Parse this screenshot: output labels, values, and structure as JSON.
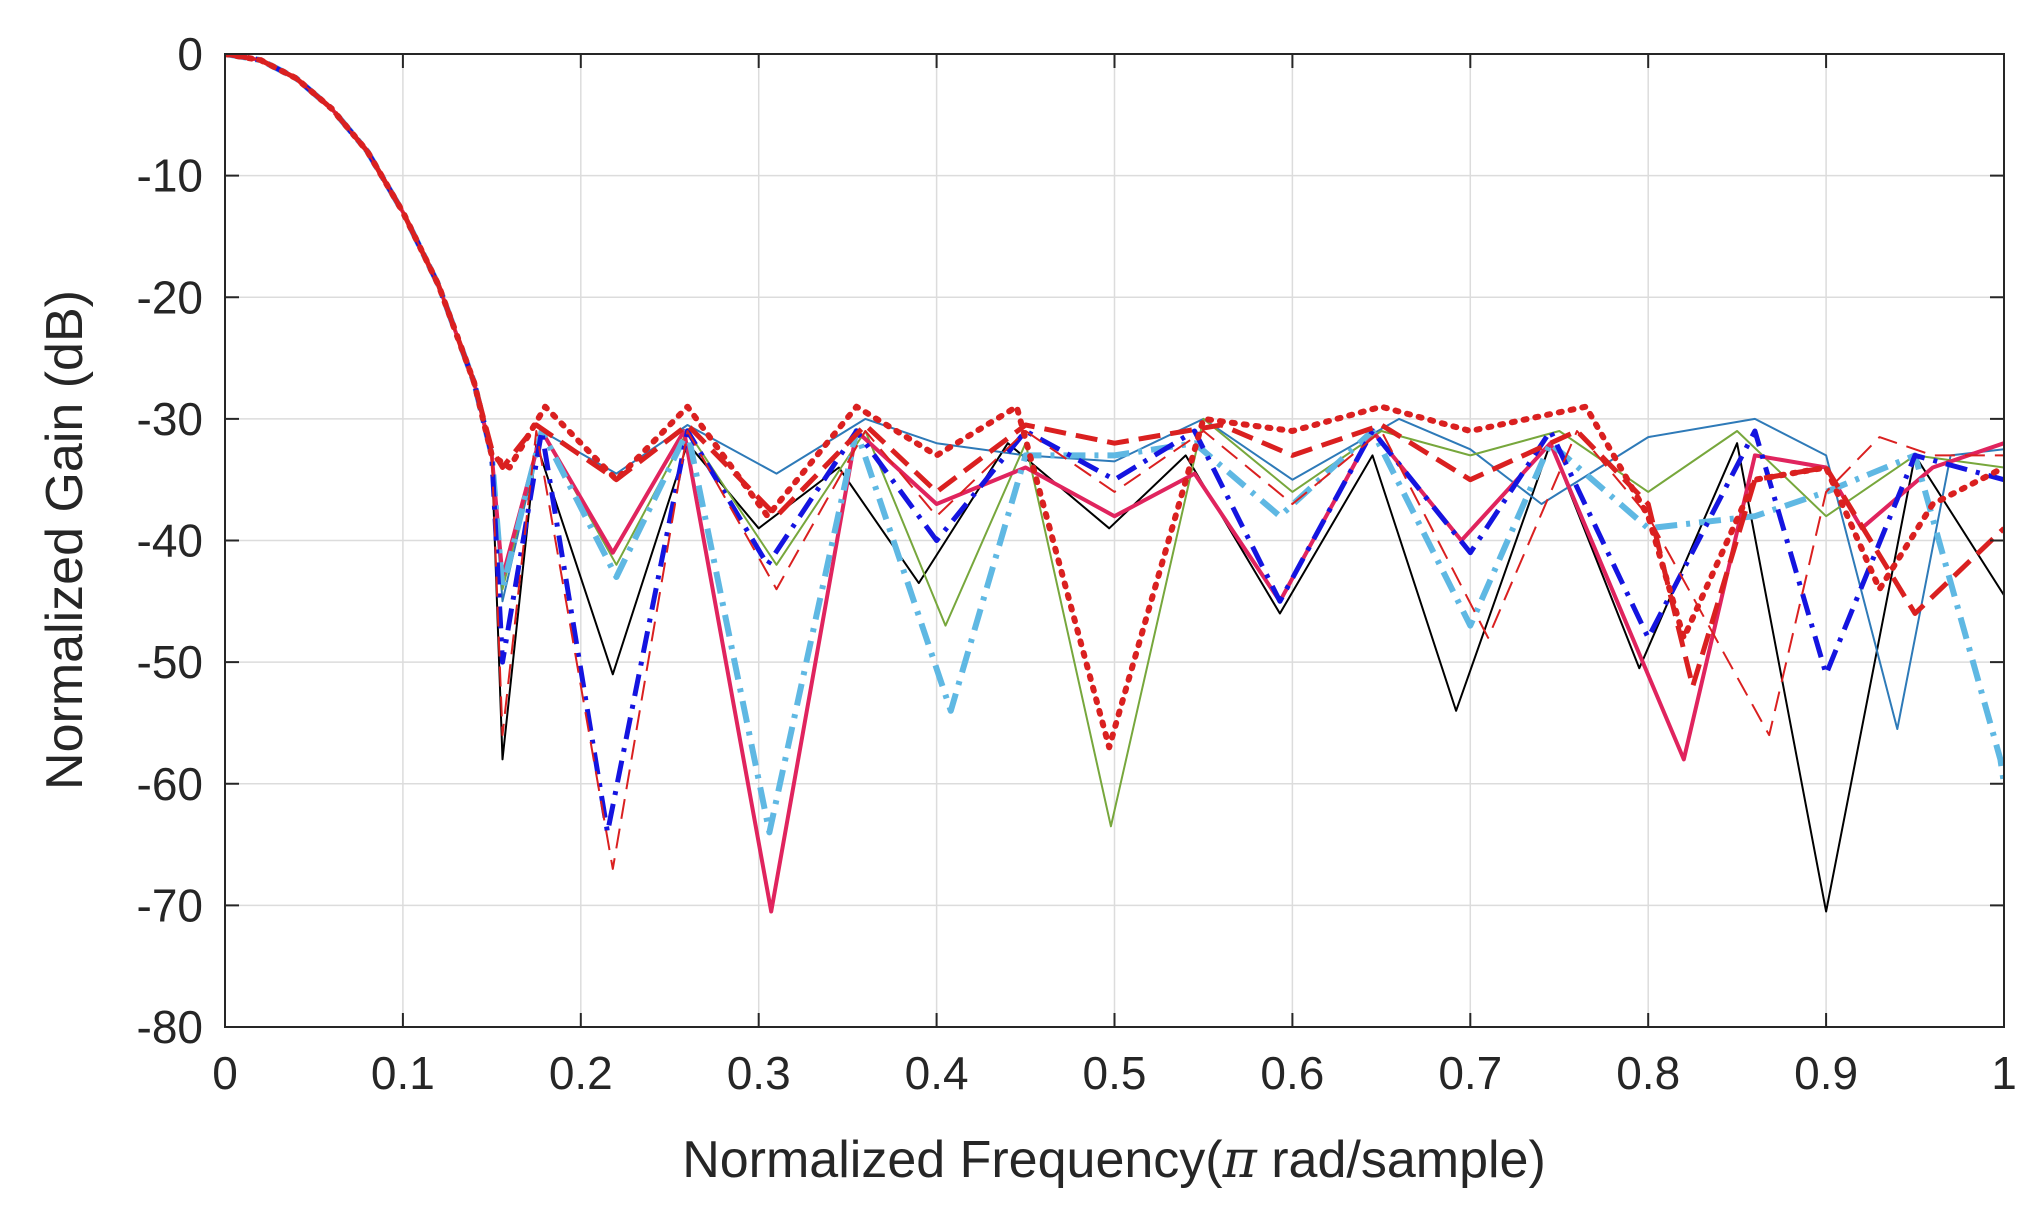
{
  "chart_data": {
    "type": "line",
    "title": "",
    "xlabel_parts": [
      "Normalized Frequency(",
      "π",
      " rad/sample)"
    ],
    "ylabel": "Normalized Gain (dB)",
    "xlim": [
      0,
      1
    ],
    "ylim": [
      -80,
      0
    ],
    "x_ticks": [
      0,
      0.1,
      0.2,
      0.3,
      0.4,
      0.5,
      0.6,
      0.7,
      0.8,
      0.9,
      1
    ],
    "x_tick_labels": [
      "0",
      "0.1",
      "0.2",
      "0.3",
      "0.4",
      "0.5",
      "0.6",
      "0.7",
      "0.8",
      "0.9",
      "1"
    ],
    "y_ticks": [
      0,
      -10,
      -20,
      -30,
      -40,
      -50,
      -60,
      -70,
      -80
    ],
    "y_tick_labels": [
      "0",
      "-10",
      "-20",
      "-30",
      "-40",
      "-50",
      "-60",
      "-70",
      "-80"
    ],
    "grid": true,
    "legend": "none",
    "mainlobe": {
      "x": [
        0,
        0.02,
        0.04,
        0.06,
        0.08,
        0.1,
        0.12,
        0.14,
        0.15
      ],
      "y": [
        0,
        -0.5,
        -2,
        -4.5,
        -8,
        -13,
        -19,
        -27,
        -33
      ]
    },
    "series": [
      {
        "color": "#000000",
        "style": "solid",
        "width": 2,
        "x": [
          0.15,
          0.156,
          0.175,
          0.218,
          0.26,
          0.3,
          0.345,
          0.39,
          0.44,
          0.497,
          0.54,
          0.593,
          0.645,
          0.692,
          0.745,
          0.795,
          0.85,
          0.9,
          0.95,
          1.0
        ],
        "y": [
          -33,
          -58,
          -32,
          -51,
          -32,
          -39,
          -34,
          -43.5,
          -32,
          -39,
          -33,
          -46,
          -33,
          -54,
          -32,
          -50.5,
          -32,
          -70.5,
          -33,
          -44.5
        ]
      },
      {
        "color": "#2e7ab8",
        "style": "solid",
        "width": 2,
        "x": [
          0.15,
          0.156,
          0.178,
          0.22,
          0.26,
          0.31,
          0.36,
          0.4,
          0.45,
          0.5,
          0.55,
          0.6,
          0.66,
          0.7,
          0.74,
          0.8,
          0.86,
          0.9,
          0.94,
          0.97,
          1.0
        ],
        "y": [
          -33,
          -45,
          -31,
          -34.5,
          -30.5,
          -34.5,
          -30,
          -32,
          -33,
          -33.5,
          -30,
          -35,
          -30,
          -32.5,
          -37,
          -31.5,
          -30,
          -33,
          -55.5,
          -33,
          -32.5
        ]
      },
      {
        "color": "#77a73c",
        "style": "solid",
        "width": 2,
        "x": [
          0.15,
          0.156,
          0.178,
          0.22,
          0.26,
          0.31,
          0.36,
          0.405,
          0.45,
          0.498,
          0.55,
          0.6,
          0.65,
          0.7,
          0.75,
          0.8,
          0.85,
          0.9,
          0.95,
          1.0
        ],
        "y": [
          -33,
          -44,
          -31,
          -42,
          -31,
          -42,
          -31,
          -47,
          -32,
          -63.5,
          -30,
          -36,
          -31,
          -33,
          -31,
          -36,
          -31,
          -38,
          -33,
          -34
        ]
      },
      {
        "color": "#e0245e",
        "style": "solid",
        "width": 4,
        "x": [
          0.15,
          0.156,
          0.178,
          0.218,
          0.258,
          0.307,
          0.355,
          0.4,
          0.45,
          0.5,
          0.545,
          0.593,
          0.645,
          0.695,
          0.745,
          0.82,
          0.86,
          0.9,
          0.92,
          0.96,
          1.0
        ],
        "y": [
          -33,
          -43,
          -31,
          -41,
          -31,
          -70.5,
          -31,
          -37,
          -34,
          -38,
          -34.5,
          -45,
          -31,
          -40,
          -32,
          -58,
          -33,
          -34,
          -39,
          -34,
          -32
        ]
      },
      {
        "color": "#5fb8e3",
        "style": "dashdot",
        "width": 6,
        "x": [
          0.15,
          0.156,
          0.178,
          0.22,
          0.26,
          0.306,
          0.355,
          0.408,
          0.45,
          0.5,
          0.545,
          0.593,
          0.645,
          0.7,
          0.745,
          0.8,
          0.86,
          0.9,
          0.95,
          0.998,
          1.0
        ],
        "y": [
          -33,
          -44,
          -31,
          -43,
          -31,
          -64,
          -31,
          -54,
          -33,
          -33,
          -32,
          -38,
          -31,
          -47,
          -32,
          -39,
          -38,
          -36,
          -33,
          -58,
          -60
        ]
      },
      {
        "color": "#1414e0",
        "style": "dashdot",
        "width": 5,
        "x": [
          0.15,
          0.156,
          0.178,
          0.215,
          0.26,
          0.305,
          0.355,
          0.4,
          0.45,
          0.5,
          0.545,
          0.593,
          0.645,
          0.7,
          0.745,
          0.8,
          0.86,
          0.9,
          0.95,
          1.0
        ],
        "y": [
          -33,
          -50,
          -31,
          -64,
          -31,
          -42,
          -31,
          -40,
          -31,
          -35,
          -31,
          -45,
          -31,
          -41,
          -31,
          -48,
          -31,
          -51,
          -33,
          -35
        ]
      },
      {
        "color": "#da2020",
        "style": "dashed",
        "width": 5,
        "x": [
          0.15,
          0.156,
          0.175,
          0.22,
          0.26,
          0.31,
          0.36,
          0.4,
          0.45,
          0.5,
          0.56,
          0.6,
          0.65,
          0.7,
          0.76,
          0.8,
          0.825,
          0.86,
          0.9,
          0.95,
          1.0
        ],
        "y": [
          -32.5,
          -34,
          -30.5,
          -35,
          -30.5,
          -38,
          -30.5,
          -36,
          -30.5,
          -32,
          -30.5,
          -33,
          -30.5,
          -35,
          -31,
          -37,
          -52,
          -35,
          -34,
          -46,
          -39
        ]
      },
      {
        "color": "#da2020",
        "style": "thin-dashed",
        "width": 2,
        "x": [
          0.15,
          0.156,
          0.175,
          0.218,
          0.26,
          0.31,
          0.36,
          0.4,
          0.45,
          0.5,
          0.55,
          0.6,
          0.65,
          0.71,
          0.76,
          0.8,
          0.868,
          0.9,
          0.93,
          0.96,
          1.0
        ],
        "y": [
          -33,
          -56,
          -31,
          -67,
          -31,
          -44,
          -31,
          -38,
          -31,
          -36,
          -31,
          -37,
          -31,
          -48,
          -31,
          -38,
          -56,
          -36,
          -31.5,
          -33,
          -33
        ]
      },
      {
        "color": "#da2020",
        "style": "dotted",
        "width": 6,
        "x": [
          0.15,
          0.16,
          0.18,
          0.22,
          0.26,
          0.305,
          0.355,
          0.4,
          0.445,
          0.497,
          0.55,
          0.6,
          0.65,
          0.7,
          0.765,
          0.8,
          0.82,
          0.86,
          0.9,
          0.93,
          0.96,
          1.0
        ],
        "y": [
          -33,
          -34,
          -29,
          -35,
          -29,
          -38,
          -29,
          -33,
          -29,
          -57,
          -30,
          -31,
          -29,
          -31,
          -29,
          -38,
          -48,
          -35,
          -34,
          -44,
          -37,
          -34
        ]
      }
    ]
  }
}
